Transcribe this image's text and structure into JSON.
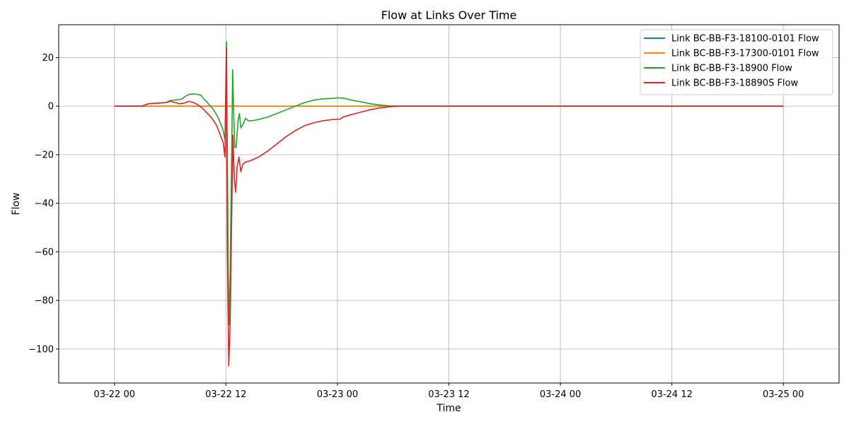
{
  "chart_data": {
    "type": "line",
    "title": "Flow at Links Over Time",
    "xlabel": "Time",
    "ylabel": "Flow",
    "x_unit": "hours since 03-22 00",
    "xlim": [
      -6,
      78
    ],
    "ylim": [
      -114,
      33.5
    ],
    "x_ticks": [
      {
        "value": 0,
        "label": "03-22 00"
      },
      {
        "value": 12,
        "label": "03-22 12"
      },
      {
        "value": 24,
        "label": "03-23 00"
      },
      {
        "value": 36,
        "label": "03-23 12"
      },
      {
        "value": 48,
        "label": "03-24 00"
      },
      {
        "value": 60,
        "label": "03-24 12"
      },
      {
        "value": 72,
        "label": "03-25 00"
      }
    ],
    "y_ticks": [
      {
        "value": 20,
        "label": "20"
      },
      {
        "value": 0,
        "label": "0"
      },
      {
        "value": -20,
        "label": "−20"
      },
      {
        "value": -40,
        "label": "−40"
      },
      {
        "value": -60,
        "label": "−60"
      },
      {
        "value": -80,
        "label": "−80"
      },
      {
        "value": -100,
        "label": "−100"
      }
    ],
    "grid": true,
    "legend_position": "top-right",
    "series": [
      {
        "name": "Link BC-BB-F3-18100-0101 Flow",
        "color": "#1f77b4",
        "points": [
          [
            0,
            0
          ],
          [
            72,
            0
          ]
        ]
      },
      {
        "name": "Link BC-BB-F3-17300-0101 Flow",
        "color": "#ff7f0e",
        "points": [
          [
            0,
            0
          ],
          [
            72,
            0
          ]
        ]
      },
      {
        "name": "Link BC-BB-F3-18900 Flow",
        "color": "#2ca02c",
        "points": [
          [
            0,
            0
          ],
          [
            3,
            0
          ],
          [
            3.3,
            0.5
          ],
          [
            3.7,
            1
          ],
          [
            5,
            1.3
          ],
          [
            5.6,
            1.5
          ],
          [
            6,
            2.3
          ],
          [
            6.5,
            2.5
          ],
          [
            7,
            2.7
          ],
          [
            7.3,
            3
          ],
          [
            7.6,
            4
          ],
          [
            8,
            4.8
          ],
          [
            8.5,
            5
          ],
          [
            9,
            4.8
          ],
          [
            9.3,
            4.5
          ],
          [
            9.6,
            3
          ],
          [
            10,
            1.5
          ],
          [
            10.3,
            0
          ],
          [
            10.6,
            -1
          ],
          [
            10.9,
            -3
          ],
          [
            11.2,
            -5
          ],
          [
            11.5,
            -8
          ],
          [
            11.7,
            -10
          ],
          [
            11.9,
            -14
          ],
          [
            12.05,
            26.5
          ],
          [
            12.15,
            -20
          ],
          [
            12.25,
            -70
          ],
          [
            12.35,
            -90
          ],
          [
            12.45,
            -70
          ],
          [
            12.55,
            -40
          ],
          [
            12.65,
            -10
          ],
          [
            12.72,
            15
          ],
          [
            12.85,
            -5
          ],
          [
            12.95,
            -17
          ],
          [
            13.1,
            -17
          ],
          [
            13.3,
            -6
          ],
          [
            13.45,
            -3
          ],
          [
            13.6,
            -9
          ],
          [
            13.9,
            -7
          ],
          [
            14.1,
            -5
          ],
          [
            14.4,
            -6
          ],
          [
            14.8,
            -6
          ],
          [
            15.5,
            -5.5
          ],
          [
            16.5,
            -4.5
          ],
          [
            17.5,
            -3
          ],
          [
            18.5,
            -1.5
          ],
          [
            19.5,
            0
          ],
          [
            20.5,
            1.5
          ],
          [
            21.5,
            2.5
          ],
          [
            22.5,
            3
          ],
          [
            23.5,
            3.2
          ],
          [
            24,
            3.4
          ],
          [
            24.5,
            3.3
          ],
          [
            25,
            3
          ],
          [
            25.5,
            2.5
          ],
          [
            26.5,
            1.8
          ],
          [
            27.5,
            1
          ],
          [
            28.5,
            0.5
          ],
          [
            29.5,
            0.1
          ],
          [
            30.5,
            0
          ],
          [
            72,
            0
          ]
        ]
      },
      {
        "name": "Link BC-BB-F3-18890S Flow",
        "color": "#d62728",
        "points": [
          [
            0,
            0
          ],
          [
            3,
            0
          ],
          [
            3.3,
            0.5
          ],
          [
            3.7,
            1
          ],
          [
            5,
            1.3
          ],
          [
            5.6,
            1.5
          ],
          [
            6,
            2
          ],
          [
            6.5,
            1.5
          ],
          [
            7,
            1
          ],
          [
            7.5,
            1.2
          ],
          [
            8,
            2
          ],
          [
            8.5,
            1.5
          ],
          [
            9,
            0.5
          ],
          [
            9.5,
            -1
          ],
          [
            10,
            -3
          ],
          [
            10.5,
            -5
          ],
          [
            11,
            -8
          ],
          [
            11.4,
            -12
          ],
          [
            11.7,
            -15
          ],
          [
            11.9,
            -21
          ],
          [
            12.05,
            24
          ],
          [
            12.15,
            -60
          ],
          [
            12.3,
            -107
          ],
          [
            12.45,
            -90
          ],
          [
            12.6,
            -50
          ],
          [
            12.75,
            -12
          ],
          [
            12.9,
            -30
          ],
          [
            13.05,
            -35.5
          ],
          [
            13.2,
            -25
          ],
          [
            13.4,
            -21
          ],
          [
            13.6,
            -27
          ],
          [
            13.8,
            -24
          ],
          [
            14.1,
            -23
          ],
          [
            14.6,
            -22.5
          ],
          [
            15.5,
            -21
          ],
          [
            16.5,
            -18.5
          ],
          [
            17.5,
            -15.5
          ],
          [
            18.5,
            -12.5
          ],
          [
            19.5,
            -10
          ],
          [
            20.5,
            -8
          ],
          [
            21.5,
            -6.8
          ],
          [
            22.5,
            -6
          ],
          [
            23.5,
            -5.5
          ],
          [
            24.3,
            -5.3
          ],
          [
            24.6,
            -4.5
          ],
          [
            25.5,
            -3.5
          ],
          [
            26.5,
            -2.5
          ],
          [
            27.5,
            -1.5
          ],
          [
            28.5,
            -0.8
          ],
          [
            29.5,
            -0.3
          ],
          [
            30.5,
            0
          ],
          [
            72,
            0
          ]
        ]
      }
    ]
  }
}
